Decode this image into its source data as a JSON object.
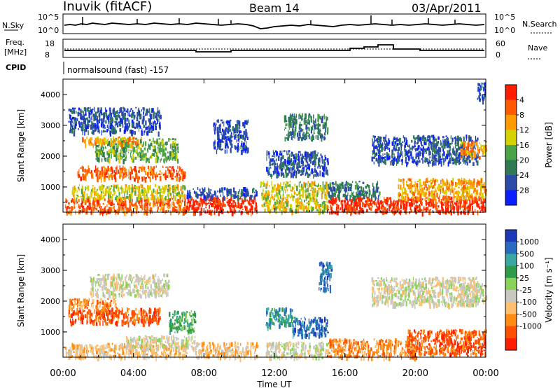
{
  "header": {
    "station": "Inuvik (fitACF)",
    "beam": "Beam 14",
    "date": "03/Apr/2011"
  },
  "summary": {
    "nsky_label": "N.Sky",
    "nsearch_label": "N.Search",
    "freq_label_1": "Freq.",
    "freq_label_2": "[MHz]",
    "nave_label": "Nave",
    "cpid_label": "CPID",
    "cpid_text": "normalsound (fast) -157",
    "nsky_ticks": [
      "10^5",
      "10^0"
    ],
    "nsearch_ticks": [
      "10^5",
      "10^0"
    ],
    "freq_ticks": [
      "18",
      "8"
    ],
    "nave_ticks": [
      "60",
      "0"
    ]
  },
  "colors": {
    "power_scale": [
      "#0a1eff",
      "#2c4aa8",
      "#2f7a52",
      "#4aa347",
      "#d6d200",
      "#ff9a00",
      "#ff5a00",
      "#ff1e00"
    ],
    "velocity_scale": [
      "#ff1e00",
      "#ff5000",
      "#ff8c10",
      "#ffc070",
      "#c8c8c0",
      "#8ad35a",
      "#2f9a4a",
      "#3aa7a0",
      "#2a6ac0",
      "#1a3ab8"
    ]
  },
  "chart_data": [
    {
      "type": "heatmap",
      "name": "power",
      "ylabel": "Slant Range [km]",
      "x_ticks": [
        "00:00",
        "04:00",
        "08:00",
        "12:00",
        "16:00",
        "20:00",
        "00:00"
      ],
      "y_ticks": [
        1000,
        2000,
        3000,
        4000
      ],
      "ylim": [
        180,
        4500
      ],
      "xlim_hours": [
        0,
        24
      ],
      "colorbar": {
        "label": "Power [dB]",
        "ticks": [
          "4",
          "8",
          "12",
          "16",
          "20",
          "24",
          "28"
        ]
      },
      "regions": [
        {
          "t0": 0.1,
          "t1": 7.0,
          "r0": 200,
          "r1": 650,
          "level": 6
        },
        {
          "t0": 0.5,
          "t1": 6.9,
          "r0": 650,
          "r1": 1100,
          "level": 4
        },
        {
          "t0": 0.8,
          "t1": 6.9,
          "r0": 1300,
          "r1": 1700,
          "level": 6
        },
        {
          "t0": 1.8,
          "t1": 6.5,
          "r0": 1900,
          "r1": 2600,
          "level": 3
        },
        {
          "t0": 1.0,
          "t1": 4.5,
          "r0": 2400,
          "r1": 2650,
          "level": 5
        },
        {
          "t0": 0.3,
          "t1": 5.5,
          "r0": 2800,
          "r1": 3600,
          "level": 1
        },
        {
          "t0": 7.0,
          "t1": 11.0,
          "r0": 200,
          "r1": 700,
          "level": 7
        },
        {
          "t0": 7.0,
          "t1": 11.0,
          "r0": 700,
          "r1": 1000,
          "level": 1
        },
        {
          "t0": 8.5,
          "t1": 10.5,
          "r0": 2200,
          "r1": 3200,
          "level": 1
        },
        {
          "t0": 11.2,
          "t1": 15.0,
          "r0": 250,
          "r1": 1200,
          "level": 4
        },
        {
          "t0": 11.5,
          "t1": 15.0,
          "r0": 1400,
          "r1": 2200,
          "level": 1
        },
        {
          "t0": 12.5,
          "t1": 15.0,
          "r0": 2600,
          "r1": 3400,
          "level": 2
        },
        {
          "t0": 15.0,
          "t1": 24.0,
          "r0": 200,
          "r1": 700,
          "level": 7
        },
        {
          "t0": 15.0,
          "t1": 18.0,
          "r0": 700,
          "r1": 1200,
          "level": 2
        },
        {
          "t0": 19.0,
          "t1": 24.0,
          "r0": 600,
          "r1": 1300,
          "level": 5
        },
        {
          "t0": 17.5,
          "t1": 23.5,
          "r0": 1800,
          "r1": 2700,
          "level": 1
        },
        {
          "t0": 22.5,
          "t1": 24.0,
          "r0": 2000,
          "r1": 2500,
          "level": 5
        },
        {
          "t0": 23.5,
          "t1": 24.0,
          "r0": 3800,
          "r1": 4400,
          "level": 1
        }
      ]
    },
    {
      "type": "heatmap",
      "name": "velocity",
      "ylabel": "Slant Range [km]",
      "xlabel": "Time UT",
      "x_ticks": [
        "00:00",
        "04:00",
        "08:00",
        "12:00",
        "16:00",
        "20:00",
        "00:00"
      ],
      "y_ticks": [
        1000,
        2000,
        3000,
        4000
      ],
      "ylim": [
        180,
        4500
      ],
      "xlim_hours": [
        0,
        24
      ],
      "colorbar": {
        "label": "Velocity [m s⁻¹]",
        "ticks": [
          "1000",
          "500",
          "100",
          "25",
          "-25",
          "-100",
          "-500",
          "-1000"
        ]
      },
      "regions": [
        {
          "t0": 0.1,
          "t1": 7.0,
          "r0": 200,
          "r1": 650,
          "level": 3
        },
        {
          "t0": 3.5,
          "t1": 7.5,
          "r0": 500,
          "r1": 900,
          "level": 4
        },
        {
          "t0": 0.3,
          "t1": 5.5,
          "r0": 1300,
          "r1": 1800,
          "level": 1
        },
        {
          "t0": 0.3,
          "t1": 3.0,
          "r0": 1800,
          "r1": 2100,
          "level": 2
        },
        {
          "t0": 1.5,
          "t1": 6.0,
          "r0": 2200,
          "r1": 2900,
          "level": 4
        },
        {
          "t0": 6.0,
          "t1": 7.5,
          "r0": 1000,
          "r1": 1700,
          "level": 6
        },
        {
          "t0": 7.5,
          "t1": 11.0,
          "r0": 200,
          "r1": 700,
          "level": 3
        },
        {
          "t0": 11.5,
          "t1": 13.0,
          "r0": 1200,
          "r1": 1800,
          "level": 7
        },
        {
          "t0": 13.0,
          "t1": 15.0,
          "r0": 900,
          "r1": 1500,
          "level": 8
        },
        {
          "t0": 11.5,
          "t1": 15.0,
          "r0": 200,
          "r1": 700,
          "level": 4
        },
        {
          "t0": 14.5,
          "t1": 15.2,
          "r0": 2400,
          "r1": 3300,
          "level": 8
        },
        {
          "t0": 15.0,
          "t1": 20.0,
          "r0": 200,
          "r1": 800,
          "level": 2
        },
        {
          "t0": 19.5,
          "t1": 24.0,
          "r0": 300,
          "r1": 1100,
          "level": 1
        },
        {
          "t0": 17.5,
          "t1": 23.5,
          "r0": 1900,
          "r1": 2800,
          "level": 4
        },
        {
          "t0": 22.5,
          "t1": 24.0,
          "r0": 2000,
          "r1": 2600,
          "level": 4
        }
      ]
    }
  ]
}
